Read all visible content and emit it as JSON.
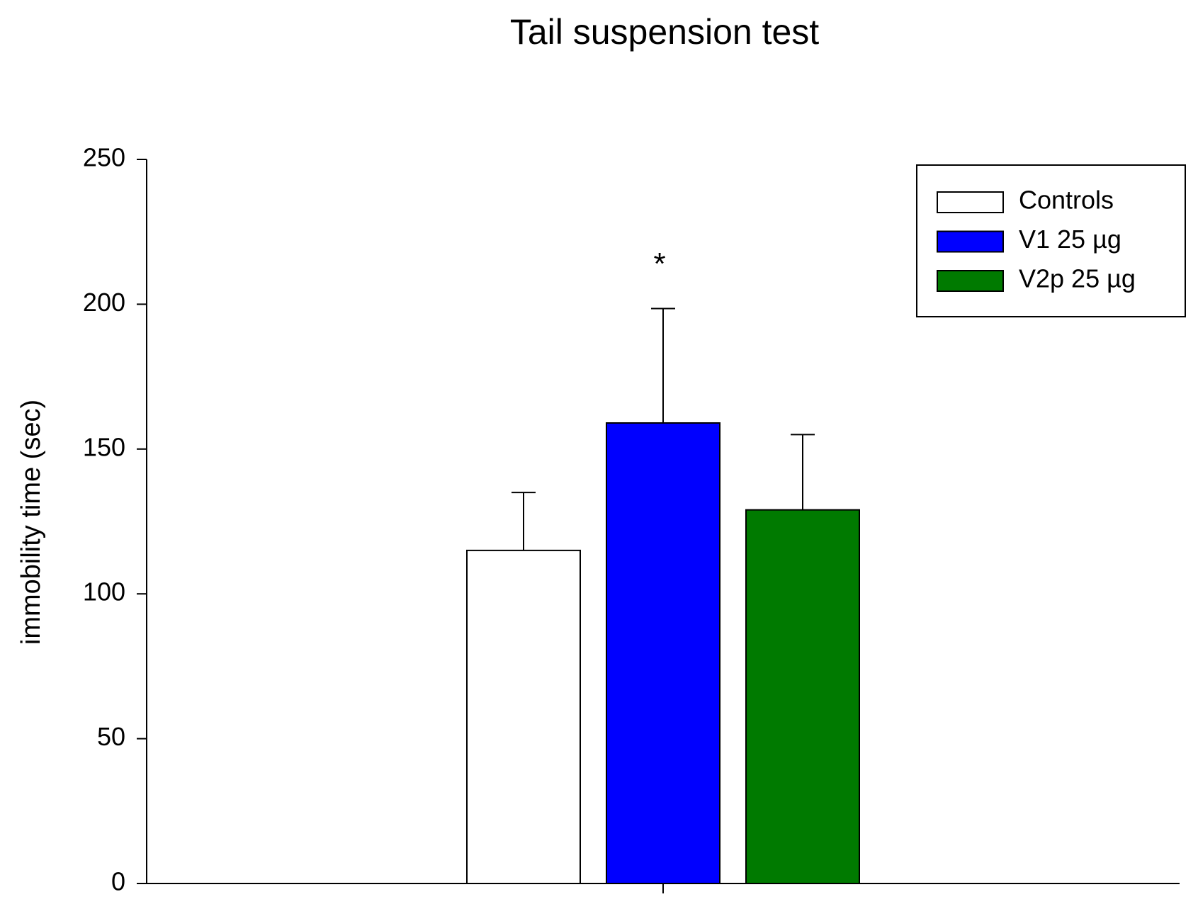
{
  "chart_data": {
    "type": "bar",
    "title": "Tail suspension test",
    "y_label": "immobility time (sec)",
    "categories": [
      null
    ],
    "series": [
      {
        "name": "Controls",
        "color": "#ffffff",
        "values": [
          115
        ],
        "errors": [
          20
        ]
      },
      {
        "name": "V1 25 µg",
        "color": "#0000ff",
        "values": [
          159
        ],
        "errors": [
          39.5
        ]
      },
      {
        "name": "V2p 25 µg",
        "color": "#007a00",
        "values": [
          129
        ],
        "errors": [
          26
        ]
      }
    ],
    "annotations": [
      {
        "text": "*",
        "series": 1,
        "category": 0
      }
    ],
    "ylim": [
      0,
      250
    ],
    "yticks": [
      0,
      50,
      100,
      150,
      200,
      250
    ],
    "grid": false,
    "legend": "top-right"
  }
}
